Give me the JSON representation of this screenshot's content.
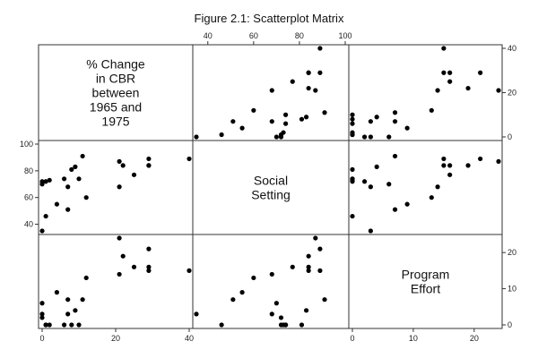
{
  "title": "Figure 2.1: Scatterplot Matrix",
  "colors": {
    "point": "#000000",
    "frame": "#333333",
    "background": "#ffffff"
  },
  "chart_data": {
    "type": "scatter",
    "title": "Figure 2.1: Scatterplot Matrix",
    "variables": [
      {
        "label_lines": [
          "% Change",
          "in CBR",
          "between",
          "1965 and",
          "1975"
        ],
        "range": [
          0,
          40
        ],
        "ticks": [
          0,
          20,
          40
        ]
      },
      {
        "label_lines": [
          "Social",
          "Setting"
        ],
        "range": [
          35,
          100
        ],
        "ticks": [
          40,
          60,
          80,
          100
        ]
      },
      {
        "label_lines": [
          "Program",
          "Effort"
        ],
        "range": [
          0,
          24
        ],
        "ticks": [
          0,
          10,
          20
        ]
      }
    ],
    "axis_tick_placement": {
      "top": [
        1
      ],
      "right": [
        0,
        2
      ],
      "left": [
        1
      ],
      "bottom": [
        0,
        2
      ]
    },
    "grid": false,
    "observations": [
      {
        "change": 1,
        "setting": 46,
        "effort": 0
      },
      {
        "change": 10,
        "setting": 74,
        "effort": 0
      },
      {
        "change": 0,
        "setting": 35,
        "effort": 3
      },
      {
        "change": 7,
        "setting": 51,
        "effort": 7
      },
      {
        "change": 4,
        "setting": 55,
        "effort": 9
      },
      {
        "change": 0,
        "setting": 72,
        "effort": 2
      },
      {
        "change": 1,
        "setting": 72,
        "effort": 0
      },
      {
        "change": 6,
        "setting": 74,
        "effort": 0
      },
      {
        "change": 7,
        "setting": 68,
        "effort": 3
      },
      {
        "change": 11,
        "setting": 91,
        "effort": 7
      },
      {
        "change": 9,
        "setting": 83,
        "effort": 4
      },
      {
        "change": 12,
        "setting": 60,
        "effort": 13
      },
      {
        "change": 2,
        "setting": 73,
        "effort": 0
      },
      {
        "change": 0,
        "setting": 70,
        "effort": 6
      },
      {
        "change": 8,
        "setting": 81,
        "effort": 0
      },
      {
        "change": 21,
        "setting": 68,
        "effort": 14
      },
      {
        "change": 22,
        "setting": 84,
        "effort": 19
      },
      {
        "change": 21,
        "setting": 87,
        "effort": 24
      },
      {
        "change": 29,
        "setting": 84,
        "effort": 16
      },
      {
        "change": 29,
        "setting": 89,
        "effort": 21
      },
      {
        "change": 25,
        "setting": 77,
        "effort": 16
      },
      {
        "change": 29,
        "setting": 84,
        "effort": 15
      },
      {
        "change": 40,
        "setting": 89,
        "effort": 15
      }
    ]
  }
}
